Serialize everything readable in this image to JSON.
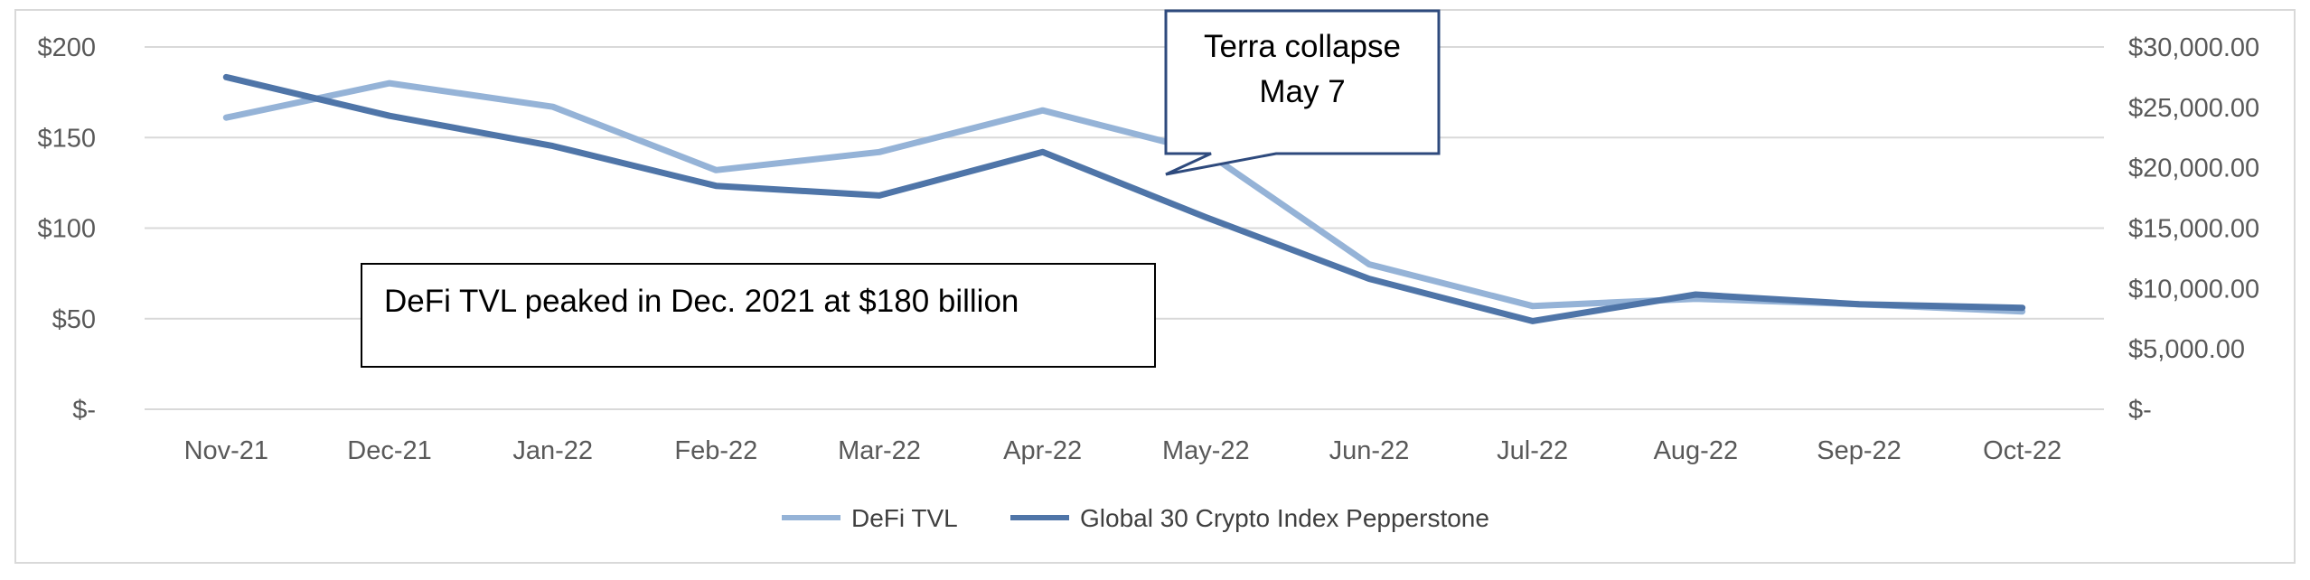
{
  "chart_data": {
    "type": "line",
    "categories": [
      "Nov-21",
      "Dec-21",
      "Jan-22",
      "Feb-22",
      "Mar-22",
      "Apr-22",
      "May-22",
      "Jun-22",
      "Jul-22",
      "Aug-22",
      "Sep-22",
      "Oct-22"
    ],
    "series": [
      {
        "name": "DeFi TVL",
        "axis": "left",
        "color": "#95b3d7",
        "values": [
          161,
          180,
          167,
          132,
          142,
          165,
          142,
          80,
          57,
          61,
          58,
          54
        ]
      },
      {
        "name": "Global 30 Crypto Index Pepperstone",
        "axis": "right",
        "color": "#4f75a8",
        "values": [
          27500,
          24300,
          21800,
          18500,
          17700,
          21300,
          15900,
          10800,
          7300,
          9500,
          8700,
          8400
        ]
      }
    ],
    "y_left": {
      "ylim": [
        0,
        200
      ],
      "ticks": [
        0,
        50,
        100,
        150,
        200
      ],
      "tick_labels": [
        "$-",
        "$50",
        "$100",
        "$150",
        "$200"
      ]
    },
    "y_right": {
      "ylim": [
        0,
        30000
      ],
      "ticks": [
        0,
        5000,
        10000,
        15000,
        20000,
        25000,
        30000
      ],
      "tick_labels": [
        "$-",
        "$5,000.00",
        "$10,000.00",
        "$15,000.00",
        "$20,000.00",
        "$25,000.00",
        "$30,000.00"
      ]
    },
    "grid": true,
    "legend": "bottom-center",
    "annotations": [
      {
        "kind": "callout",
        "lines": [
          "Terra collapse",
          "May 7"
        ],
        "points_to": "May-22"
      },
      {
        "kind": "textbox",
        "text": "DeFi TVL peaked in Dec. 2021 at $180 billion"
      }
    ]
  }
}
